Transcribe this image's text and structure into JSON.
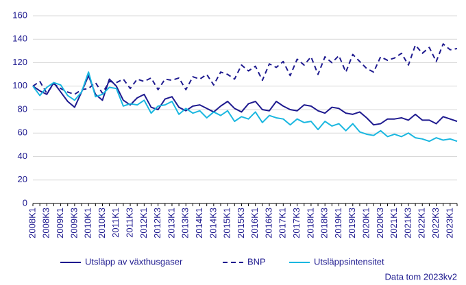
{
  "chart_data": {
    "type": "line",
    "categories": [
      "2008K1",
      null,
      "2008K3",
      null,
      "2009K1",
      null,
      "2009K3",
      null,
      "2010K1",
      null,
      "2010K3",
      null,
      "2011K1",
      null,
      "2011K3",
      null,
      "2012K1",
      null,
      "2012K3",
      null,
      "2013K1",
      null,
      "2013K3",
      null,
      "2014K1",
      null,
      "2014K3",
      null,
      "2015K1",
      null,
      "2015K3",
      null,
      "2016K1",
      null,
      "2016K3",
      null,
      "2017K1",
      null,
      "2017K3",
      null,
      "2018K1",
      null,
      "2018K3",
      null,
      "2019K1",
      null,
      "2019K3",
      null,
      "2020K1",
      null,
      "2020K3",
      null,
      "2021K1",
      null,
      "2021K3",
      null,
      "2022K1",
      null,
      "2022K3",
      null,
      "2023K1",
      null
    ],
    "series": [
      {
        "name": "Utsläpp av växthusgaser",
        "color": "#1e1a8f",
        "dashed": false,
        "values": [
          100,
          96,
          93,
          103,
          95,
          87,
          82,
          95,
          109,
          93,
          88,
          106,
          100,
          88,
          84,
          90,
          93,
          82,
          80,
          89,
          91,
          82,
          79,
          83,
          84,
          81,
          78,
          83,
          87,
          81,
          78,
          85,
          87,
          80,
          79,
          87,
          83,
          80,
          79,
          84,
          83,
          79,
          77,
          82,
          81,
          77,
          76,
          78,
          73,
          67,
          68,
          72,
          72,
          73,
          71,
          76,
          71,
          71,
          68,
          74,
          72,
          70
        ]
      },
      {
        "name": "BNP",
        "color": "#1e1a8f",
        "dashed": true,
        "values": [
          100,
          104,
          94,
          102,
          98,
          95,
          93,
          97,
          98,
          103,
          94,
          104,
          103,
          106,
          98,
          106,
          104,
          107,
          97,
          106,
          105,
          107,
          97,
          108,
          106,
          110,
          101,
          112,
          110,
          106,
          118,
          113,
          117,
          105,
          119,
          116,
          121,
          109,
          123,
          118,
          125,
          110,
          125,
          120,
          126,
          112,
          127,
          121,
          115,
          112,
          125,
          122,
          124,
          128,
          118,
          135,
          128,
          133,
          121,
          136,
          131,
          132
        ]
      },
      {
        "name": "Utsläppsintensitet",
        "color": "#1ab7e0",
        "dashed": false,
        "values": [
          100,
          92,
          99,
          103,
          101,
          92,
          88,
          95,
          112,
          91,
          93,
          99,
          98,
          83,
          85,
          84,
          88,
          77,
          83,
          84,
          87,
          76,
          81,
          77,
          79,
          73,
          78,
          75,
          79,
          70,
          74,
          72,
          78,
          69,
          75,
          73,
          72,
          67,
          72,
          69,
          70,
          63,
          70,
          66,
          68,
          62,
          68,
          61,
          59,
          58,
          62,
          57,
          59,
          57,
          60,
          56,
          55,
          53,
          56,
          54,
          55,
          53
        ]
      }
    ],
    "ylim": [
      0,
      160
    ],
    "yticks": [
      0,
      20,
      40,
      60,
      80,
      100,
      120,
      140,
      160
    ],
    "grid": true,
    "legend": "bottom",
    "note": "Data tom 2023kv2"
  }
}
